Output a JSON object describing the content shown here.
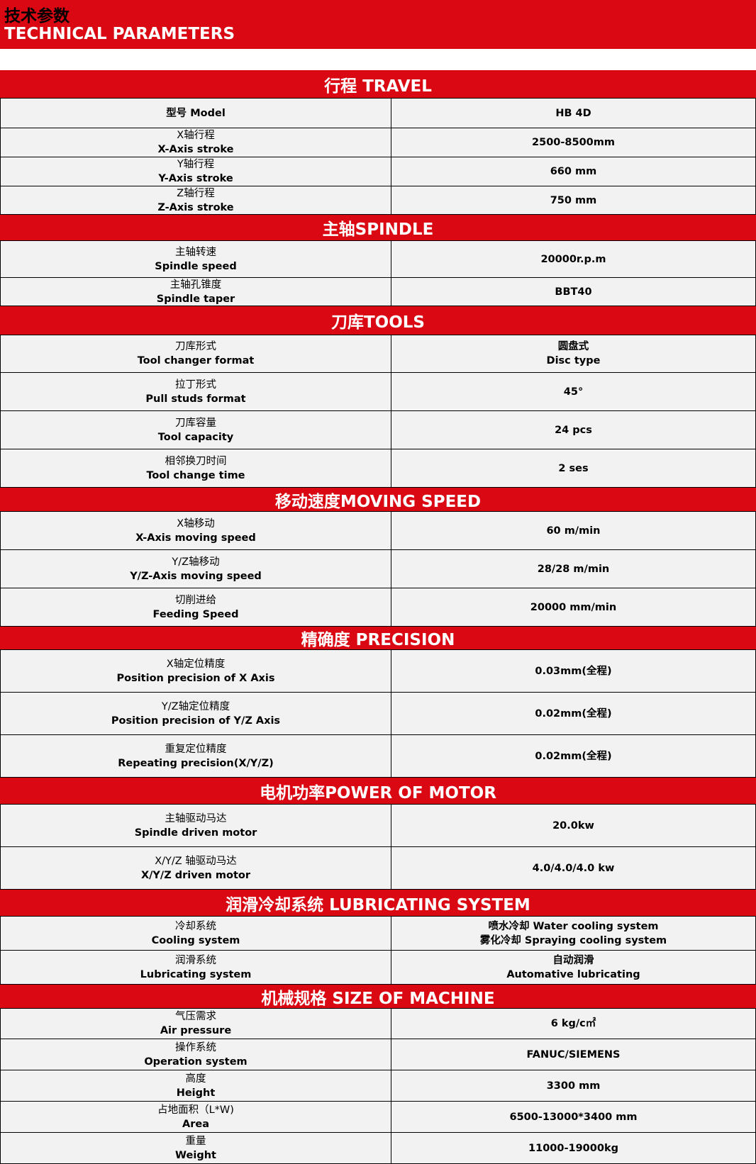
{
  "title": {
    "cn": "技术参数",
    "en": "TECHNICAL PARAMETERS"
  },
  "colors": {
    "accent": "#d90812",
    "cell_bg": "#f2f2f2"
  },
  "sections": [
    {
      "title": "行程 TRAVEL",
      "rows": [
        {
          "label": [
            "型号 Model"
          ],
          "value": [
            "HB 4D"
          ]
        },
        {
          "label": [
            "X轴行程",
            "X-Axis stroke"
          ],
          "value": [
            "2500-8500mm"
          ]
        },
        {
          "label": [
            "Y轴行程",
            "Y-Axis stroke"
          ],
          "value": [
            "660 mm"
          ]
        },
        {
          "label": [
            "Z轴行程",
            "Z-Axis stroke"
          ],
          "value": [
            "750 mm"
          ]
        }
      ]
    },
    {
      "title": "主轴SPINDLE",
      "rows": [
        {
          "label": [
            "主轴转速",
            "Spindle speed"
          ],
          "value": [
            "20000r.p.m"
          ]
        },
        {
          "label": [
            "主轴孔锥度",
            "Spindle taper"
          ],
          "value": [
            "BBT40"
          ]
        }
      ]
    },
    {
      "title": "刀库TOOLS",
      "rows": [
        {
          "label": [
            "刀库形式",
            "Tool changer format"
          ],
          "value": [
            "圆盘式",
            "Disc type"
          ]
        },
        {
          "label": [
            "拉丁形式",
            "Pull studs format"
          ],
          "value": [
            "45°"
          ]
        },
        {
          "label": [
            "刀库容量",
            "Tool capacity"
          ],
          "value": [
            "24 pcs"
          ]
        },
        {
          "label": [
            "相邻换刀时间",
            "Tool change time"
          ],
          "value": [
            "2 ses"
          ]
        }
      ]
    },
    {
      "title": "移动速度MOVING SPEED",
      "rows": [
        {
          "label": [
            "X轴移动",
            "X-Axis moving speed"
          ],
          "value": [
            "60 m/min"
          ]
        },
        {
          "label": [
            "Y/Z轴移动",
            "Y/Z-Axis moving speed"
          ],
          "value": [
            "28/28 m/min"
          ]
        },
        {
          "label": [
            "切削进给",
            "Feeding Speed"
          ],
          "value": [
            "20000 mm/min"
          ]
        }
      ]
    },
    {
      "title": "精确度 PRECISION",
      "rows": [
        {
          "label": [
            "X轴定位精度",
            "Position precision of X Axis"
          ],
          "value": [
            "0.03mm(全程)"
          ]
        },
        {
          "label": [
            "Y/Z轴定位精度",
            "Position precision of Y/Z Axis"
          ],
          "value": [
            "0.02mm(全程)"
          ]
        },
        {
          "label": [
            "重复定位精度",
            "Repeating precision(X/Y/Z)"
          ],
          "value": [
            "0.02mm(全程)"
          ]
        }
      ]
    },
    {
      "title": "电机功率POWER OF MOTOR",
      "rows": [
        {
          "label": [
            "主轴驱动马达",
            "Spindle driven motor"
          ],
          "value": [
            "20.0kw"
          ]
        },
        {
          "label": [
            "X/Y/Z 轴驱动马达",
            "X/Y/Z driven motor"
          ],
          "value": [
            "4.0/4.0/4.0 kw"
          ]
        }
      ]
    },
    {
      "title": "润滑冷却系统 LUBRICATING SYSTEM",
      "rows": [
        {
          "label": [
            "冷却系统",
            "Cooling system"
          ],
          "value": [
            "喷水冷却 Water cooling system",
            "雾化冷却 Spraying cooling system"
          ]
        },
        {
          "label": [
            "润滑系统",
            "Lubricating system"
          ],
          "value": [
            "自动润滑",
            "Automative lubricating"
          ]
        }
      ]
    },
    {
      "title": "机械规格 SIZE OF MACHINE",
      "rows": [
        {
          "label": [
            "气压需求",
            "Air pressure"
          ],
          "value": [
            "6 kg/c㎡"
          ]
        },
        {
          "label": [
            "操作系统",
            "Operation system"
          ],
          "value": [
            "FANUC/SIEMENS"
          ]
        },
        {
          "label": [
            "高度",
            "Height"
          ],
          "value": [
            "3300 mm"
          ]
        },
        {
          "label": [
            "占地面积（L*W)",
            "Area"
          ],
          "value": [
            "6500-13000*3400 mm"
          ]
        },
        {
          "label": [
            "重量",
            "Weight"
          ],
          "value": [
            "11000-19000kg"
          ]
        }
      ]
    }
  ]
}
